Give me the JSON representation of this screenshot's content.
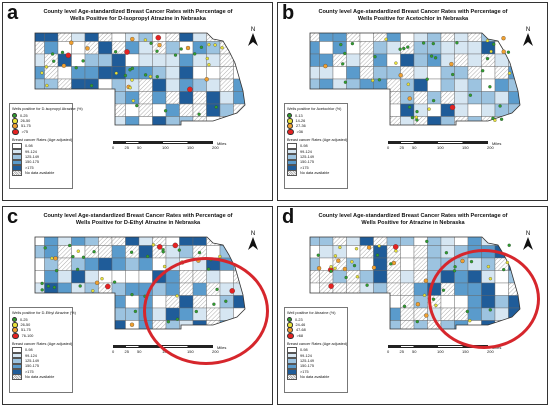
{
  "panels": [
    {
      "letter": "a",
      "title": "County level Age-standardized Breast Cancer Rates with Percentage of Wells Positive for D-Isopropyl Atrazine in Nebraska",
      "wells_legend": "Wells positive for D-isopropyl Atrazine (%)",
      "wells_classes": [
        "0-25",
        "26-50",
        "51-75",
        ">75"
      ],
      "cancer_legend": "Breast cancer Rates (Age adjusted)"
    },
    {
      "letter": "b",
      "title": "County level Age-standardized Breast Cancer Rates with Percentage of Wells Positive for Acetochlor in Nebraska",
      "wells_legend": "Wells positive for Acetochlor (%)",
      "wells_classes": [
        "0-13",
        "14-26",
        "27-36",
        ">36"
      ],
      "cancer_legend": "Breast cancer Rates (Age adjusted)"
    },
    {
      "letter": "c",
      "title": "County level Age-standardized Breast Cancer Rates with Percentage of Wells Positive for D-Ethyl Atrazine in Nebraska",
      "wells_legend": "Wells positive for D-Ethyl Atrazine (%)",
      "wells_classes": [
        "0-25",
        "26-50",
        "51-75",
        "76-100"
      ],
      "cancer_legend": "Breast cancer Rates (Age adjusted)"
    },
    {
      "letter": "d",
      "title": "County level Age-standardized Breast Cancer Rates with Percentage of Wells Positive for Atrazine in Nebraska",
      "wells_legend": "Well positive for Atrazine (%)",
      "wells_classes": [
        "0-23",
        "24-46",
        "47-68",
        ">68"
      ],
      "cancer_legend": "Breast cancer Rates (Age adjusted)"
    }
  ],
  "cancer_classes": [
    "0-98",
    "99-124",
    "125-149",
    "150-175",
    ">175"
  ],
  "no_data": "No data available",
  "scale": {
    "ticks": [
      "0",
      "25",
      "50",
      "100",
      "150",
      "200"
    ],
    "unit": "Miles"
  },
  "compass": "N",
  "colors": {
    "dot_classes": [
      "#2f9e2f",
      "#e8e23a",
      "#f0a030",
      "#e52222"
    ],
    "cancer_classes": [
      "#ffffff",
      "#d6e6f2",
      "#9cc3e0",
      "#5a9bcc",
      "#1f5c99"
    ],
    "highlight": "#d6262c"
  }
}
